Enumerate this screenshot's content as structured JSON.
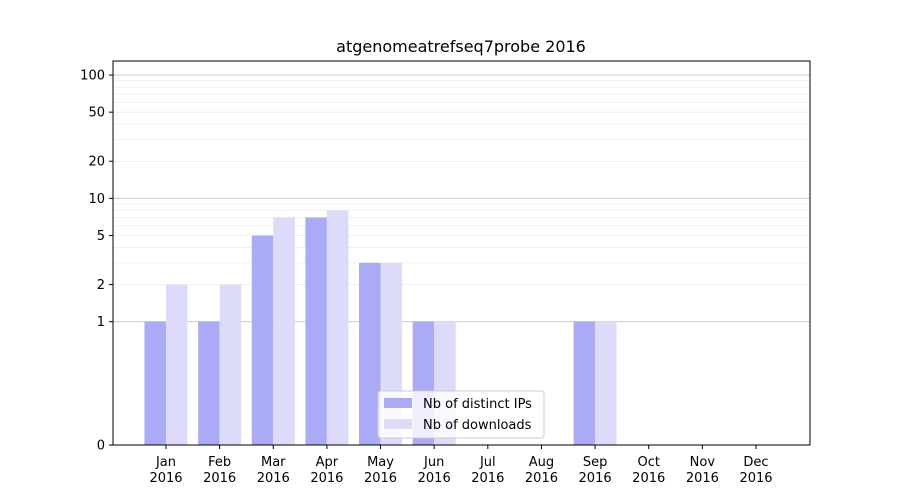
{
  "chart_data": {
    "type": "bar",
    "title": "atgenomeatrefseq7probe 2016",
    "xlabel": "",
    "ylabel": "",
    "yscale": "symlog",
    "ylim": [
      0,
      130
    ],
    "yticks": [
      0,
      1,
      2,
      5,
      10,
      20,
      50,
      100
    ],
    "grid": true,
    "legend_position": "bottom-center",
    "categories": [
      [
        "Jan",
        "2016"
      ],
      [
        "Feb",
        "2016"
      ],
      [
        "Mar",
        "2016"
      ],
      [
        "Apr",
        "2016"
      ],
      [
        "May",
        "2016"
      ],
      [
        "Jun",
        "2016"
      ],
      [
        "Jul",
        "2016"
      ],
      [
        "Aug",
        "2016"
      ],
      [
        "Sep",
        "2016"
      ],
      [
        "Oct",
        "2016"
      ],
      [
        "Nov",
        "2016"
      ],
      [
        "Dec",
        "2016"
      ]
    ],
    "series": [
      {
        "name": "Nb of distinct IPs",
        "color": "#aaaaf7",
        "values": [
          1,
          1,
          5,
          7,
          3,
          1,
          0,
          0,
          1,
          0,
          0,
          0
        ]
      },
      {
        "name": "Nb of downloads",
        "color": "#dcdcfa",
        "values": [
          2,
          2,
          7,
          8,
          3,
          1,
          0,
          0,
          1,
          0,
          0,
          0
        ]
      }
    ]
  }
}
